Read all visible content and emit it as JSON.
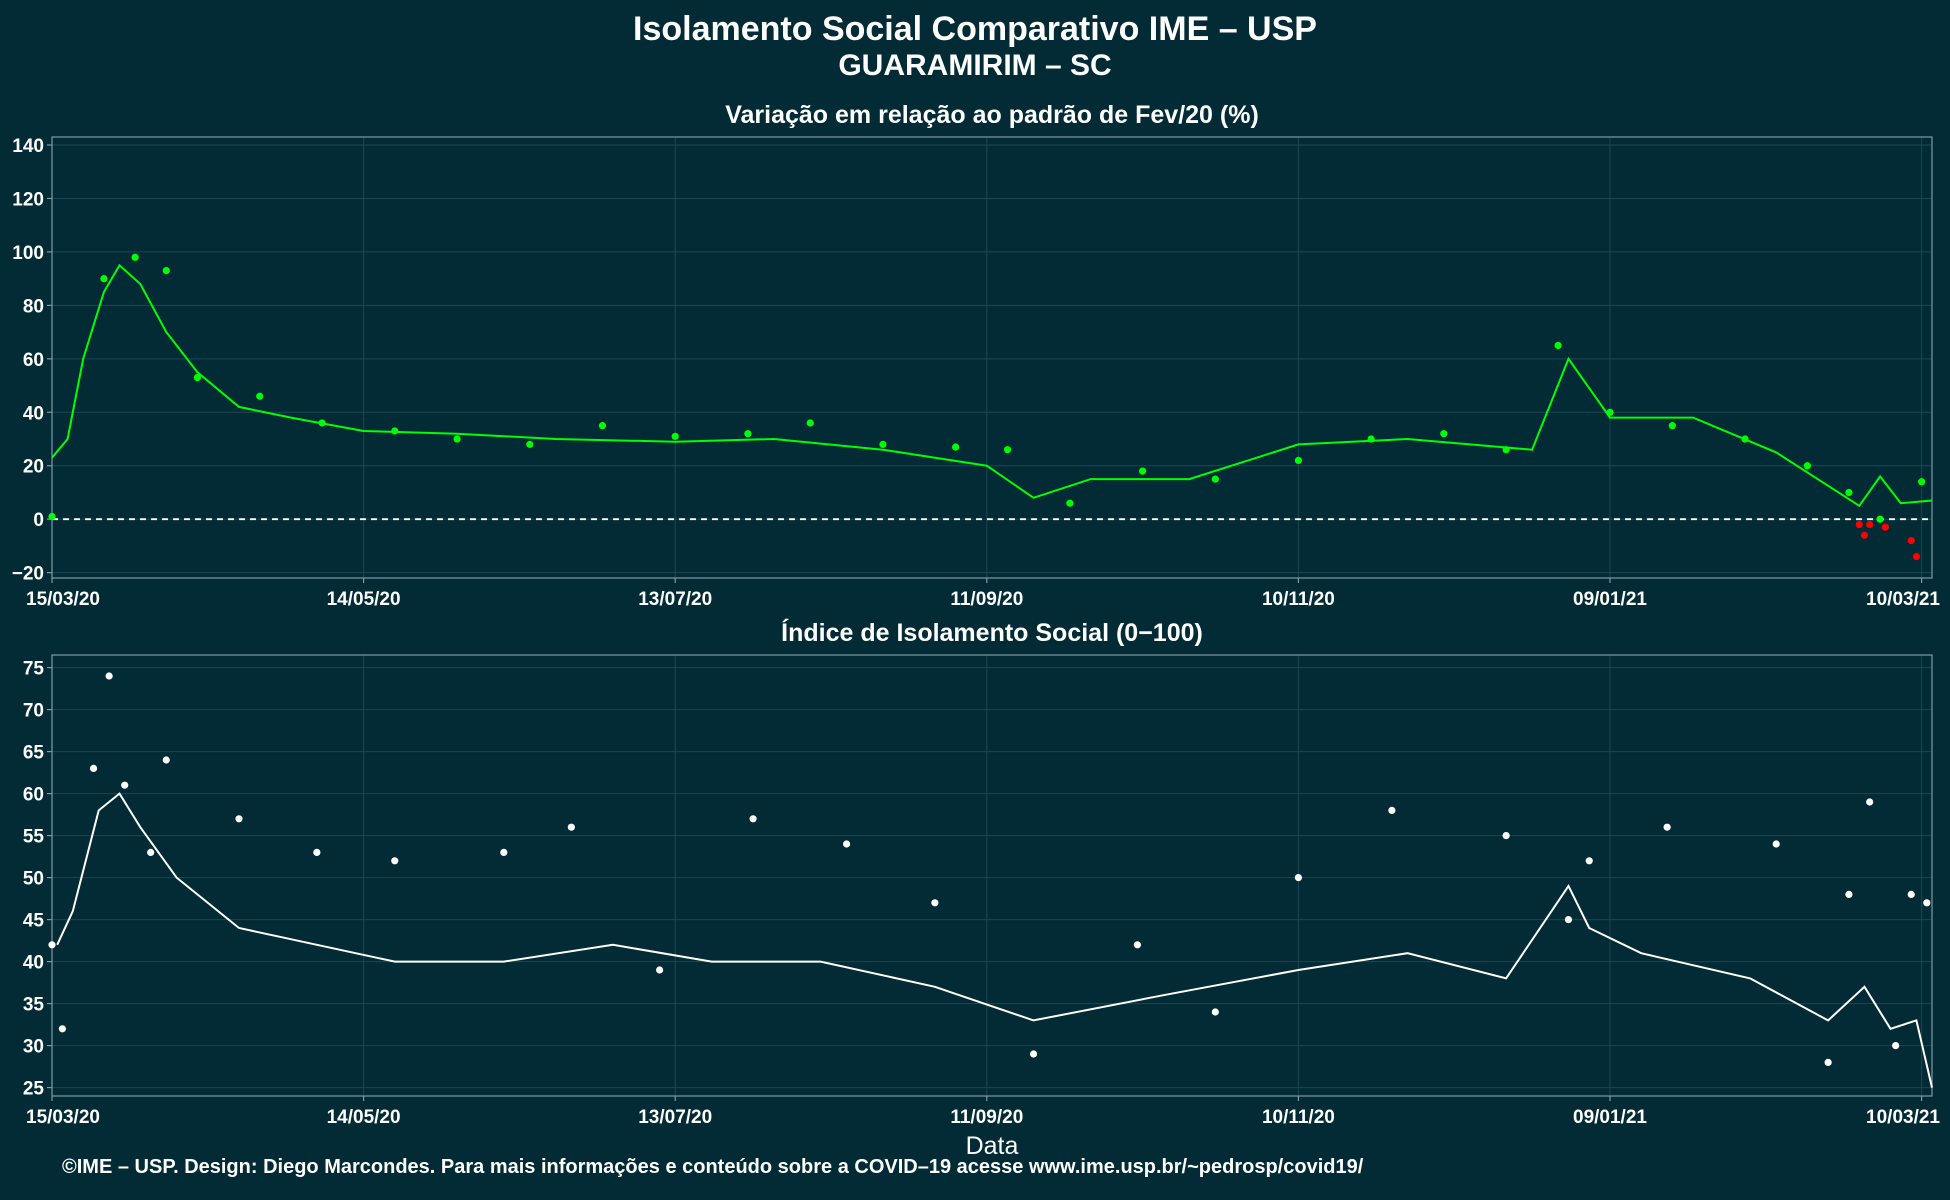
{
  "title": "Isolamento Social Comparativo IME – USP",
  "subtitle": "GUARAMIRIM – SC",
  "footer": "©IME – USP. Design: Diego Marcondes. Para mais informações e conteúdo sobre a COVID–19 acesse www.ime.usp.br/~pedrosp/covid19/",
  "colors": {
    "background": "#022b36",
    "top_series": "#00ff00",
    "top_negative": "#ff0000",
    "bottom_series": "#ffffff",
    "grid": "#1c4752",
    "frame": "#7f9aa1"
  },
  "chart_data": [
    {
      "type": "scatter",
      "title": "Variação em relação ao padrão de Fev/20 (%)",
      "xlabel": "",
      "ylabel": "",
      "x_ticks": [
        "15/03/20",
        "14/05/20",
        "13/07/20",
        "11/09/20",
        "10/11/20",
        "09/01/21",
        "10/03/21"
      ],
      "y_ticks": [
        "−20",
        "0",
        "20",
        "40",
        "60",
        "80",
        "100",
        "120",
        "140"
      ],
      "ylim": [
        -22,
        143
      ],
      "xlim": [
        "15/03/20",
        "12/03/21"
      ],
      "reference_line": 0,
      "series": [
        {
          "kind": "points",
          "x": [
            "15/03/20",
            "25/03/20",
            "31/03/20",
            "06/04/20",
            "12/04/20",
            "24/04/20",
            "06/05/20",
            "20/05/20",
            "01/06/20",
            "15/06/20",
            "29/06/20",
            "13/07/20",
            "27/07/20",
            "08/08/20",
            "22/08/20",
            "05/09/20",
            "15/09/20",
            "27/09/20",
            "11/10/20",
            "25/10/20",
            "10/11/20",
            "24/11/20",
            "08/12/20",
            "20/12/20",
            "30/12/20",
            "09/01/21",
            "21/01/21",
            "04/02/21",
            "16/02/21",
            "24/02/21",
            "02/03/21",
            "10/03/21"
          ],
          "y": [
            1,
            90,
            98,
            93,
            53,
            46,
            36,
            33,
            30,
            28,
            35,
            31,
            32,
            36,
            28,
            27,
            26,
            6,
            18,
            15,
            22,
            30,
            32,
            26,
            65,
            40,
            35,
            30,
            20,
            10,
            0,
            14
          ]
        },
        {
          "kind": "points",
          "x": [
            "26/02/21",
            "27/02/21",
            "28/02/21",
            "03/03/21",
            "08/03/21",
            "09/03/21"
          ],
          "y": [
            -2,
            -6,
            -2,
            -3,
            -8,
            -14
          ]
        },
        {
          "kind": "line",
          "x": [
            "15/03/20",
            "18/03/20",
            "21/03/20",
            "25/03/20",
            "28/03/20",
            "01/04/20",
            "06/04/20",
            "12/04/20",
            "20/04/20",
            "30/04/20",
            "14/05/20",
            "01/06/20",
            "20/06/20",
            "13/07/20",
            "01/08/20",
            "22/08/20",
            "11/09/20",
            "20/09/20",
            "01/10/20",
            "20/10/20",
            "10/11/20",
            "01/12/20",
            "25/12/20",
            "01/01/21",
            "09/01/21",
            "25/01/21",
            "10/02/21",
            "26/02/21",
            "02/03/21",
            "06/03/21",
            "12/03/21"
          ],
          "y": [
            23,
            30,
            60,
            85,
            95,
            88,
            70,
            55,
            42,
            38,
            33,
            32,
            30,
            29,
            30,
            26,
            20,
            8,
            15,
            15,
            28,
            30,
            26,
            60,
            38,
            38,
            25,
            5,
            16,
            6,
            7
          ]
        }
      ]
    },
    {
      "type": "scatter",
      "title": "Índice de Isolamento Social (0−100)",
      "xlabel": "Data",
      "ylabel": "",
      "x_ticks": [
        "15/03/20",
        "14/05/20",
        "13/07/20",
        "11/09/20",
        "10/11/20",
        "09/01/21",
        "10/03/21"
      ],
      "y_ticks": [
        "25",
        "30",
        "35",
        "40",
        "45",
        "50",
        "55",
        "60",
        "65",
        "70",
        "75"
      ],
      "ylim": [
        24,
        76.5
      ],
      "xlim": [
        "15/03/20",
        "12/03/21"
      ],
      "series": [
        {
          "kind": "points",
          "x": [
            "15/03/20",
            "17/03/20",
            "23/03/20",
            "26/03/20",
            "29/03/20",
            "03/04/20",
            "06/04/20",
            "20/04/20",
            "05/05/20",
            "20/05/20",
            "10/06/20",
            "23/06/20",
            "10/07/20",
            "28/07/20",
            "15/08/20",
            "01/09/20",
            "20/09/20",
            "10/10/20",
            "25/10/20",
            "10/11/20",
            "28/11/20",
            "20/12/20",
            "01/01/21",
            "05/01/21",
            "20/01/21",
            "10/02/21",
            "20/02/21",
            "24/02/21",
            "28/02/21",
            "05/03/21",
            "08/03/21",
            "11/03/21"
          ],
          "y": [
            42,
            32,
            63,
            74,
            61,
            53,
            64,
            57,
            53,
            52,
            53,
            56,
            39,
            57,
            54,
            47,
            29,
            42,
            34,
            50,
            58,
            55,
            45,
            52,
            56,
            54,
            28,
            48,
            59,
            30,
            48,
            47
          ]
        },
        {
          "kind": "line",
          "x": [
            "16/03/20",
            "19/03/20",
            "24/03/20",
            "28/03/20",
            "01/04/20",
            "08/04/20",
            "20/04/20",
            "05/05/20",
            "20/05/20",
            "10/06/20",
            "01/07/20",
            "20/07/20",
            "10/08/20",
            "01/09/20",
            "20/09/20",
            "15/10/20",
            "10/11/20",
            "01/12/20",
            "20/12/20",
            "01/01/21",
            "05/01/21",
            "15/01/21",
            "05/02/21",
            "20/02/21",
            "27/02/21",
            "04/03/21",
            "09/03/21",
            "12/03/21"
          ],
          "y": [
            42,
            46,
            58,
            60,
            56,
            50,
            44,
            42,
            40,
            40,
            42,
            40,
            40,
            37,
            33,
            36,
            39,
            41,
            38,
            49,
            44,
            41,
            38,
            33,
            37,
            32,
            33,
            25
          ]
        }
      ]
    }
  ]
}
